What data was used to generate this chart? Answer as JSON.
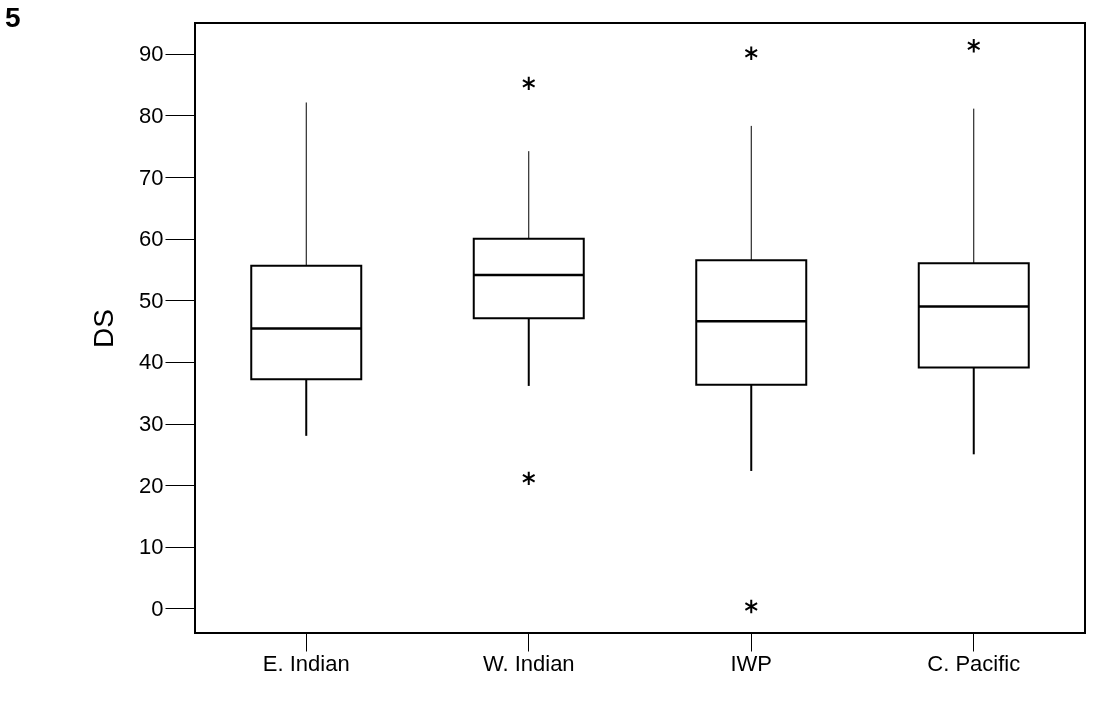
{
  "chart_data": {
    "type": "box",
    "ylabel": "DS",
    "annotations": [
      "5"
    ],
    "categories": [
      "E. Indian",
      "W. Indian",
      "IWP",
      "C. Pacific"
    ],
    "boxes": [
      {
        "low": 28.0,
        "q1": 37.2,
        "median": 45.4,
        "q3": 55.6,
        "high": 82.1
      },
      {
        "low": 36.1,
        "q1": 47.1,
        "median": 54.1,
        "q3": 60.0,
        "high": 74.2,
        "outliers": [
          85.2,
          21.1
        ]
      },
      {
        "low": 22.3,
        "q1": 36.3,
        "median": 46.6,
        "q3": 56.5,
        "high": 78.3,
        "outliers": [
          90.1,
          0.3
        ]
      },
      {
        "low": 25.0,
        "q1": 39.1,
        "median": 49.0,
        "q3": 56.0,
        "high": 81.1,
        "outliers": [
          91.3
        ]
      }
    ],
    "ylim": [
      -4,
      95
    ],
    "yticks": [
      0,
      10,
      20,
      30,
      40,
      50,
      60,
      70,
      80,
      90
    ],
    "grid": false
  }
}
